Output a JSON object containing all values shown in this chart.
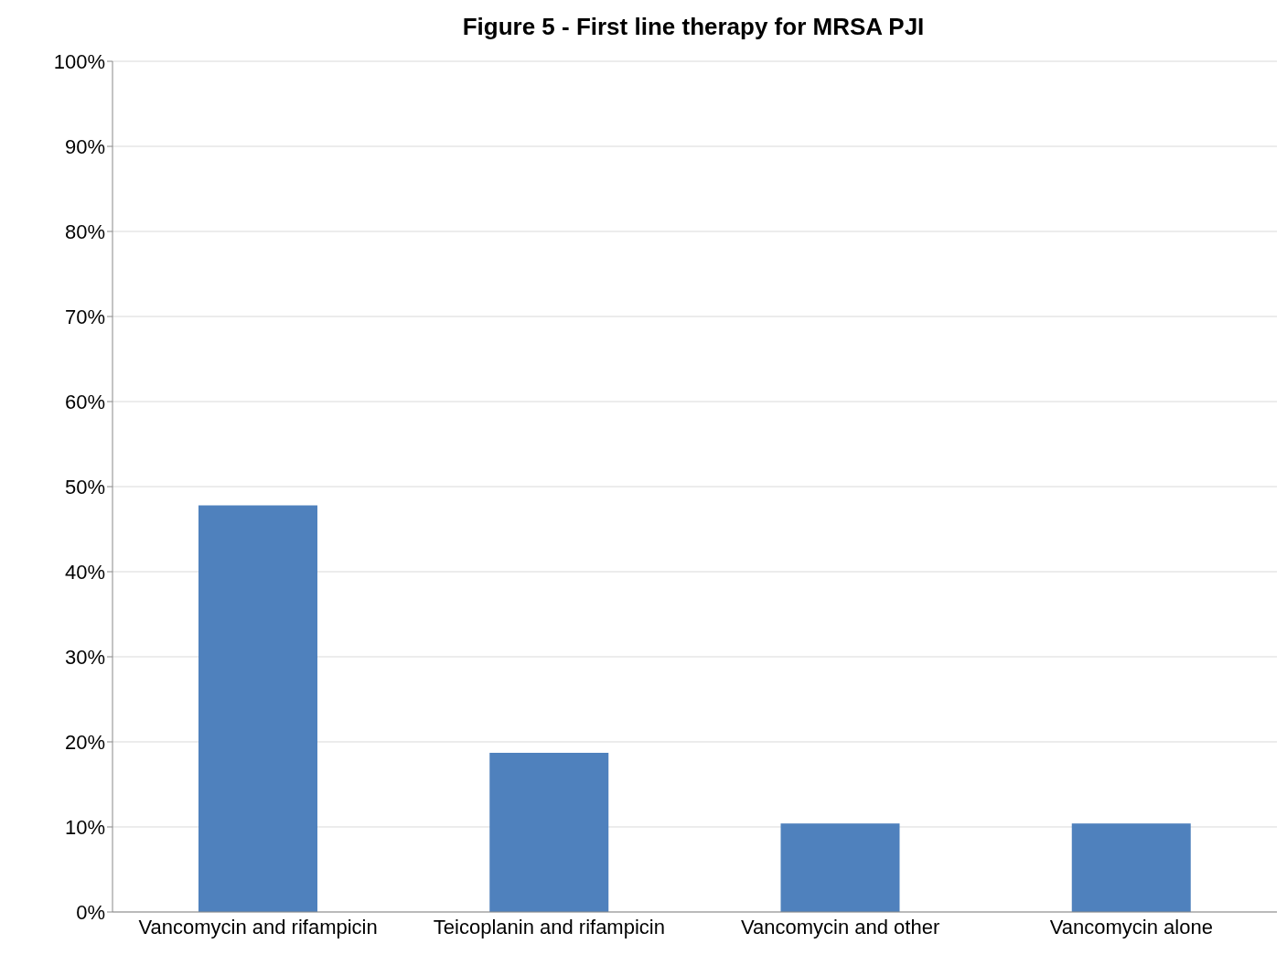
{
  "chart_data": {
    "type": "bar",
    "title": "Figure 5 - First line therapy for MRSA PJI",
    "categories": [
      "Vancomycin and rifampicin",
      "Teicoplanin and rifampicin",
      "Vancomycin and other",
      "Vancomycin alone"
    ],
    "values": [
      47.8,
      18.7,
      10.4,
      10.4
    ],
    "color": "#4f81bd",
    "ylim": [
      0,
      100
    ],
    "yticks": [
      {
        "value": 0,
        "label": "0%"
      },
      {
        "value": 10,
        "label": "10%"
      },
      {
        "value": 20,
        "label": "20%"
      },
      {
        "value": 30,
        "label": "30%"
      },
      {
        "value": 40,
        "label": "40%"
      },
      {
        "value": 50,
        "label": "50%"
      },
      {
        "value": 60,
        "label": "60%"
      },
      {
        "value": 70,
        "label": "70%"
      },
      {
        "value": 80,
        "label": "80%"
      },
      {
        "value": 90,
        "label": "90%"
      },
      {
        "value": 100,
        "label": "100%"
      }
    ],
    "grid": "y",
    "legend": false
  }
}
